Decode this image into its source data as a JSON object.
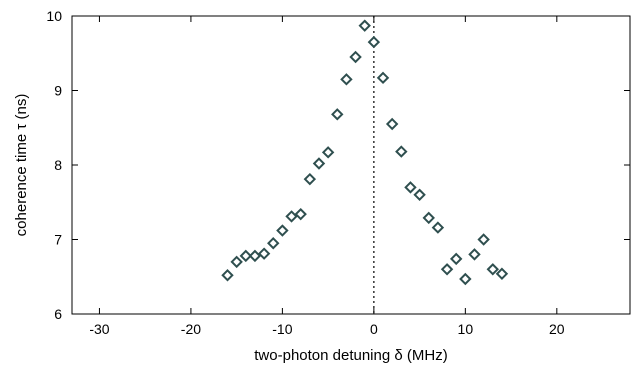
{
  "chart_data": {
    "type": "scatter",
    "title": "",
    "xlabel": "two-photon detuning δ (MHz)",
    "ylabel": "coherence time τ (ns)",
    "xlim": [
      -33,
      28
    ],
    "ylim": [
      6,
      10
    ],
    "xticks": [
      -30,
      -20,
      -10,
      0,
      10,
      20
    ],
    "xtick_labels": [
      "-30",
      "-20",
      "-10",
      "0",
      "10",
      "20"
    ],
    "yticks": [
      6,
      7,
      8,
      9,
      10
    ],
    "ytick_labels": [
      "6",
      "7",
      "8",
      "9",
      "10"
    ],
    "grid": false,
    "legend": "none",
    "reference_line": {
      "axis": "x",
      "value": 0,
      "style": "dotted"
    },
    "marker": {
      "shape": "diamond",
      "stroke_color": "#2f4f4f",
      "fill_color": "#ffffff"
    },
    "series": [
      {
        "x": [
          -16,
          -15,
          -14,
          -13,
          -12,
          -11,
          -10,
          -9,
          -8,
          -7,
          -6,
          -5,
          -4,
          -3,
          -2,
          -1,
          0,
          1,
          2,
          3,
          4,
          5,
          6,
          7,
          8,
          9,
          10,
          11,
          12,
          13,
          14
        ],
        "y": [
          6.52,
          6.7,
          6.78,
          6.78,
          6.81,
          6.95,
          7.12,
          7.31,
          7.34,
          7.81,
          8.02,
          8.17,
          8.68,
          9.15,
          9.45,
          9.87,
          9.65,
          9.17,
          8.55,
          8.18,
          7.7,
          7.6,
          7.29,
          7.16,
          6.6,
          6.74,
          6.47,
          6.8,
          7.0,
          6.6,
          6.54
        ]
      }
    ]
  }
}
